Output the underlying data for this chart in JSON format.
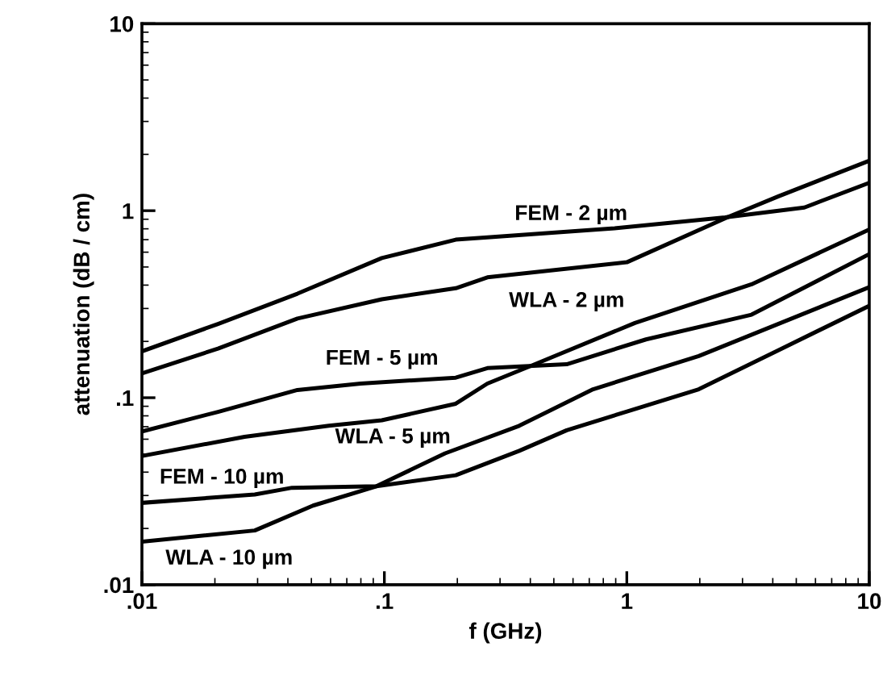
{
  "chart_data": {
    "type": "line",
    "xlabel": "f (GHz)",
    "ylabel": "attenuation (dB / cm)",
    "log": "xy",
    "grid": false,
    "legend": false,
    "marker": "none",
    "line_style": "solid",
    "xlim": [
      0.01,
      10
    ],
    "ylim": [
      0.01,
      10
    ],
    "xticks": [
      {
        "value": 0.01,
        "label": ".01"
      },
      {
        "value": 0.1,
        "label": ".1"
      },
      1,
      10
    ],
    "yticks": [
      {
        "value": 0.01,
        "label": ".01"
      },
      {
        "value": 0.1,
        "label": ".1"
      },
      1,
      10
    ],
    "series": [
      {
        "name": "FEM - 2 µm",
        "color": "#000000",
        "x": [
          0.01,
          0.0206,
          0.0438,
          0.0976,
          0.197,
          0.266,
          0.89,
          2.54,
          5.4,
          10
        ],
        "values": [
          0.177,
          0.248,
          0.36,
          0.558,
          0.7,
          0.72,
          0.805,
          0.92,
          1.04,
          1.41
        ]
      },
      {
        "name": "WLA - 2 µm",
        "color": "#000000",
        "x": [
          0.01,
          0.0206,
          0.0438,
          0.0976,
          0.197,
          0.266,
          1,
          2.54,
          4.2,
          10
        ],
        "values": [
          0.135,
          0.183,
          0.265,
          0.336,
          0.385,
          0.44,
          0.53,
          0.91,
          1.19,
          1.85
        ]
      },
      {
        "name": "FEM - 5 µm",
        "color": "#000000",
        "x": [
          0.01,
          0.0206,
          0.0438,
          0.0798,
          0.197,
          0.266,
          0.565,
          1.2,
          3.27,
          10
        ],
        "values": [
          0.066,
          0.084,
          0.11,
          0.119,
          0.128,
          0.144,
          0.151,
          0.205,
          0.278,
          0.586
        ]
      },
      {
        "name": "WLA - 5 µm",
        "color": "#000000",
        "x": [
          0.01,
          0.0265,
          0.059,
          0.0976,
          0.197,
          0.266,
          0.418,
          1.08,
          3.27,
          10
        ],
        "values": [
          0.0488,
          0.0618,
          0.0708,
          0.0757,
          0.0929,
          0.119,
          0.151,
          0.251,
          0.404,
          0.794
        ]
      },
      {
        "name": "FEM - 10 µm",
        "color": "#000000",
        "x": [
          0.01,
          0.0292,
          0.0416,
          0.0927,
          0.197,
          0.36,
          0.565,
          1.98,
          4.2,
          10
        ],
        "values": [
          0.0274,
          0.0304,
          0.033,
          0.0336,
          0.0385,
          0.052,
          0.067,
          0.111,
          0.179,
          0.31
        ]
      },
      {
        "name": "WLA - 10 µm",
        "color": "#000000",
        "x": [
          0.01,
          0.0292,
          0.0508,
          0.0927,
          0.178,
          0.36,
          0.726,
          1.98,
          10
        ],
        "values": [
          0.017,
          0.0195,
          0.0265,
          0.0336,
          0.0504,
          0.0708,
          0.111,
          0.167,
          0.39
        ]
      }
    ]
  }
}
